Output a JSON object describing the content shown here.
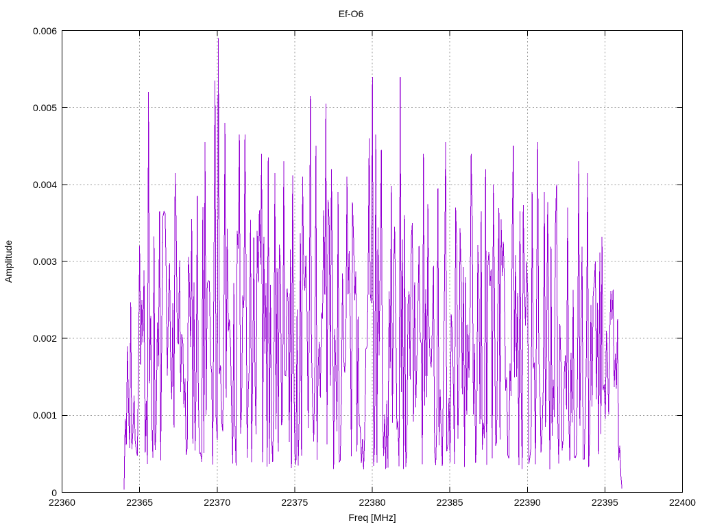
{
  "figure": {
    "background": "#ffffff"
  },
  "chart_data": {
    "type": "line",
    "style": "noise-spectrum",
    "title": "Ef-O6",
    "xlabel": "Freq [MHz]",
    "ylabel": "Amplitude",
    "xlim": [
      22360,
      22400
    ],
    "ylim": [
      0,
      0.006
    ],
    "x_ticks": [
      22360,
      22365,
      22370,
      22375,
      22380,
      22385,
      22390,
      22395,
      22400
    ],
    "x_tick_labels": [
      "22360",
      "22365",
      "22370",
      "22375",
      "22380",
      "22385",
      "22390",
      "22395",
      "22400"
    ],
    "y_ticks": [
      0,
      0.001,
      0.002,
      0.003,
      0.004,
      0.005,
      0.006
    ],
    "y_tick_labels": [
      "0",
      "0.001",
      "0.002",
      "0.003",
      "0.004",
      "0.005",
      "0.006"
    ],
    "grid": true,
    "grid_style": "dotted",
    "legend": "none",
    "line_color": "#9400d3",
    "grid_color": "#9e9e9e",
    "border_color": "#000000",
    "signal": {
      "x_start": 22364.0,
      "x_end": 22396.1,
      "n_points": 450,
      "seed": 7,
      "base_min": 0.0003,
      "base_max": 0.0038,
      "shape_exponent": 1.6,
      "spike_threshold": 0.94,
      "spike_gain": 0.012,
      "edge_taper_mhz": 0.45,
      "end_value": 5e-05
    },
    "peaks": [
      [
        22364.2,
        0.0019
      ],
      [
        22365.0,
        0.0032
      ],
      [
        22365.55,
        0.0052
      ],
      [
        22366.3,
        0.00365
      ],
      [
        22366.6,
        0.00365
      ],
      [
        22367.3,
        0.00415
      ],
      [
        22368.7,
        0.00385
      ],
      [
        22369.2,
        0.00455
      ],
      [
        22369.85,
        0.00535
      ],
      [
        22370.1,
        0.0059
      ],
      [
        22370.5,
        0.0048
      ],
      [
        22371.4,
        0.00465
      ],
      [
        22371.8,
        0.00465
      ],
      [
        22372.9,
        0.0044
      ],
      [
        22373.3,
        0.00435
      ],
      [
        22373.7,
        0.00415
      ],
      [
        22374.3,
        0.0043
      ],
      [
        22374.9,
        0.00412
      ],
      [
        22375.5,
        0.0041
      ],
      [
        22376.0,
        0.00515
      ],
      [
        22376.35,
        0.0045
      ],
      [
        22377.0,
        0.00505
      ],
      [
        22377.35,
        0.0042
      ],
      [
        22377.8,
        0.0039
      ],
      [
        22378.4,
        0.0041
      ],
      [
        22379.8,
        0.0046
      ],
      [
        22380.0,
        0.0054
      ],
      [
        22380.25,
        0.00465
      ],
      [
        22380.6,
        0.00445
      ],
      [
        22381.8,
        0.0054
      ],
      [
        22382.1,
        0.0036
      ],
      [
        22383.0,
        0.0032
      ],
      [
        22383.3,
        0.0044
      ],
      [
        22384.2,
        0.00395
      ],
      [
        22384.75,
        0.00455
      ],
      [
        22385.4,
        0.0037
      ],
      [
        22386.4,
        0.0044
      ],
      [
        22387.0,
        0.00365
      ],
      [
        22387.8,
        0.004
      ],
      [
        22388.3,
        0.00355
      ],
      [
        22389.1,
        0.0045
      ],
      [
        22389.5,
        0.00365
      ],
      [
        22390.3,
        0.0039
      ],
      [
        22390.65,
        0.00455
      ],
      [
        22391.1,
        0.0039
      ],
      [
        22391.9,
        0.004
      ],
      [
        22392.6,
        0.0037
      ],
      [
        22393.3,
        0.0043
      ],
      [
        22393.9,
        0.00415
      ],
      [
        22394.4,
        0.003
      ],
      [
        22395.1,
        0.0021
      ],
      [
        22395.7,
        0.0018
      ]
    ]
  }
}
